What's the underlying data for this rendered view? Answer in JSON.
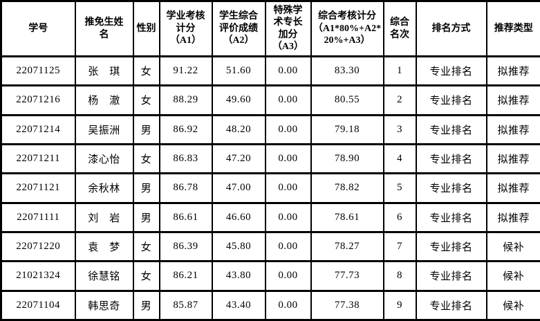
{
  "table": {
    "columns": [
      {
        "key": "student-id",
        "label": "学号"
      },
      {
        "key": "candidate-name",
        "label": "推免生姓\n名"
      },
      {
        "key": "gender",
        "label": "性别"
      },
      {
        "key": "a1-score",
        "label": "学业考核\n计分\n（A1）"
      },
      {
        "key": "a2-score",
        "label": "学生综合\n评价成绩\n（A2）"
      },
      {
        "key": "a3-bonus",
        "label": "特殊学\n术专长\n加分\n（A3）"
      },
      {
        "key": "composite-score",
        "label": "综合考核计分\n（A1*80%+A2*\n20%+A3）"
      },
      {
        "key": "overall-rank",
        "label": "综合\n名次"
      },
      {
        "key": "ranking-method",
        "label": "排名方式"
      },
      {
        "key": "recommend-type",
        "label": "推荐类型"
      }
    ],
    "rows": [
      [
        "22071125",
        "张　琪",
        "女",
        "91.22",
        "51.60",
        "0.00",
        "83.30",
        "1",
        "专业排名",
        "拟推荐"
      ],
      [
        "22071216",
        "杨　澈",
        "女",
        "88.29",
        "49.60",
        "0.00",
        "80.55",
        "2",
        "专业排名",
        "拟推荐"
      ],
      [
        "22071214",
        "吴振洲",
        "男",
        "86.92",
        "48.20",
        "0.00",
        "79.18",
        "3",
        "专业排名",
        "拟推荐"
      ],
      [
        "22071211",
        "漆心怡",
        "女",
        "86.83",
        "47.20",
        "0.00",
        "78.90",
        "4",
        "专业排名",
        "拟推荐"
      ],
      [
        "22071121",
        "余秋林",
        "男",
        "86.78",
        "47.00",
        "0.00",
        "78.82",
        "5",
        "专业排名",
        "拟推荐"
      ],
      [
        "22071111",
        "刘　岩",
        "男",
        "86.61",
        "46.60",
        "0.00",
        "78.61",
        "6",
        "专业排名",
        "拟推荐"
      ],
      [
        "22071220",
        "袁　梦",
        "女",
        "86.39",
        "45.80",
        "0.00",
        "78.27",
        "7",
        "专业排名",
        "候补"
      ],
      [
        "21021324",
        "徐慧铭",
        "女",
        "86.21",
        "43.80",
        "0.00",
        "77.73",
        "8",
        "专业排名",
        "候补"
      ],
      [
        "22071104",
        "韩思奇",
        "男",
        "85.87",
        "43.40",
        "0.00",
        "77.38",
        "9",
        "专业排名",
        "候补"
      ]
    ]
  },
  "colors": {
    "border": "#000000",
    "text": "#000000",
    "background": "#ffffff"
  }
}
